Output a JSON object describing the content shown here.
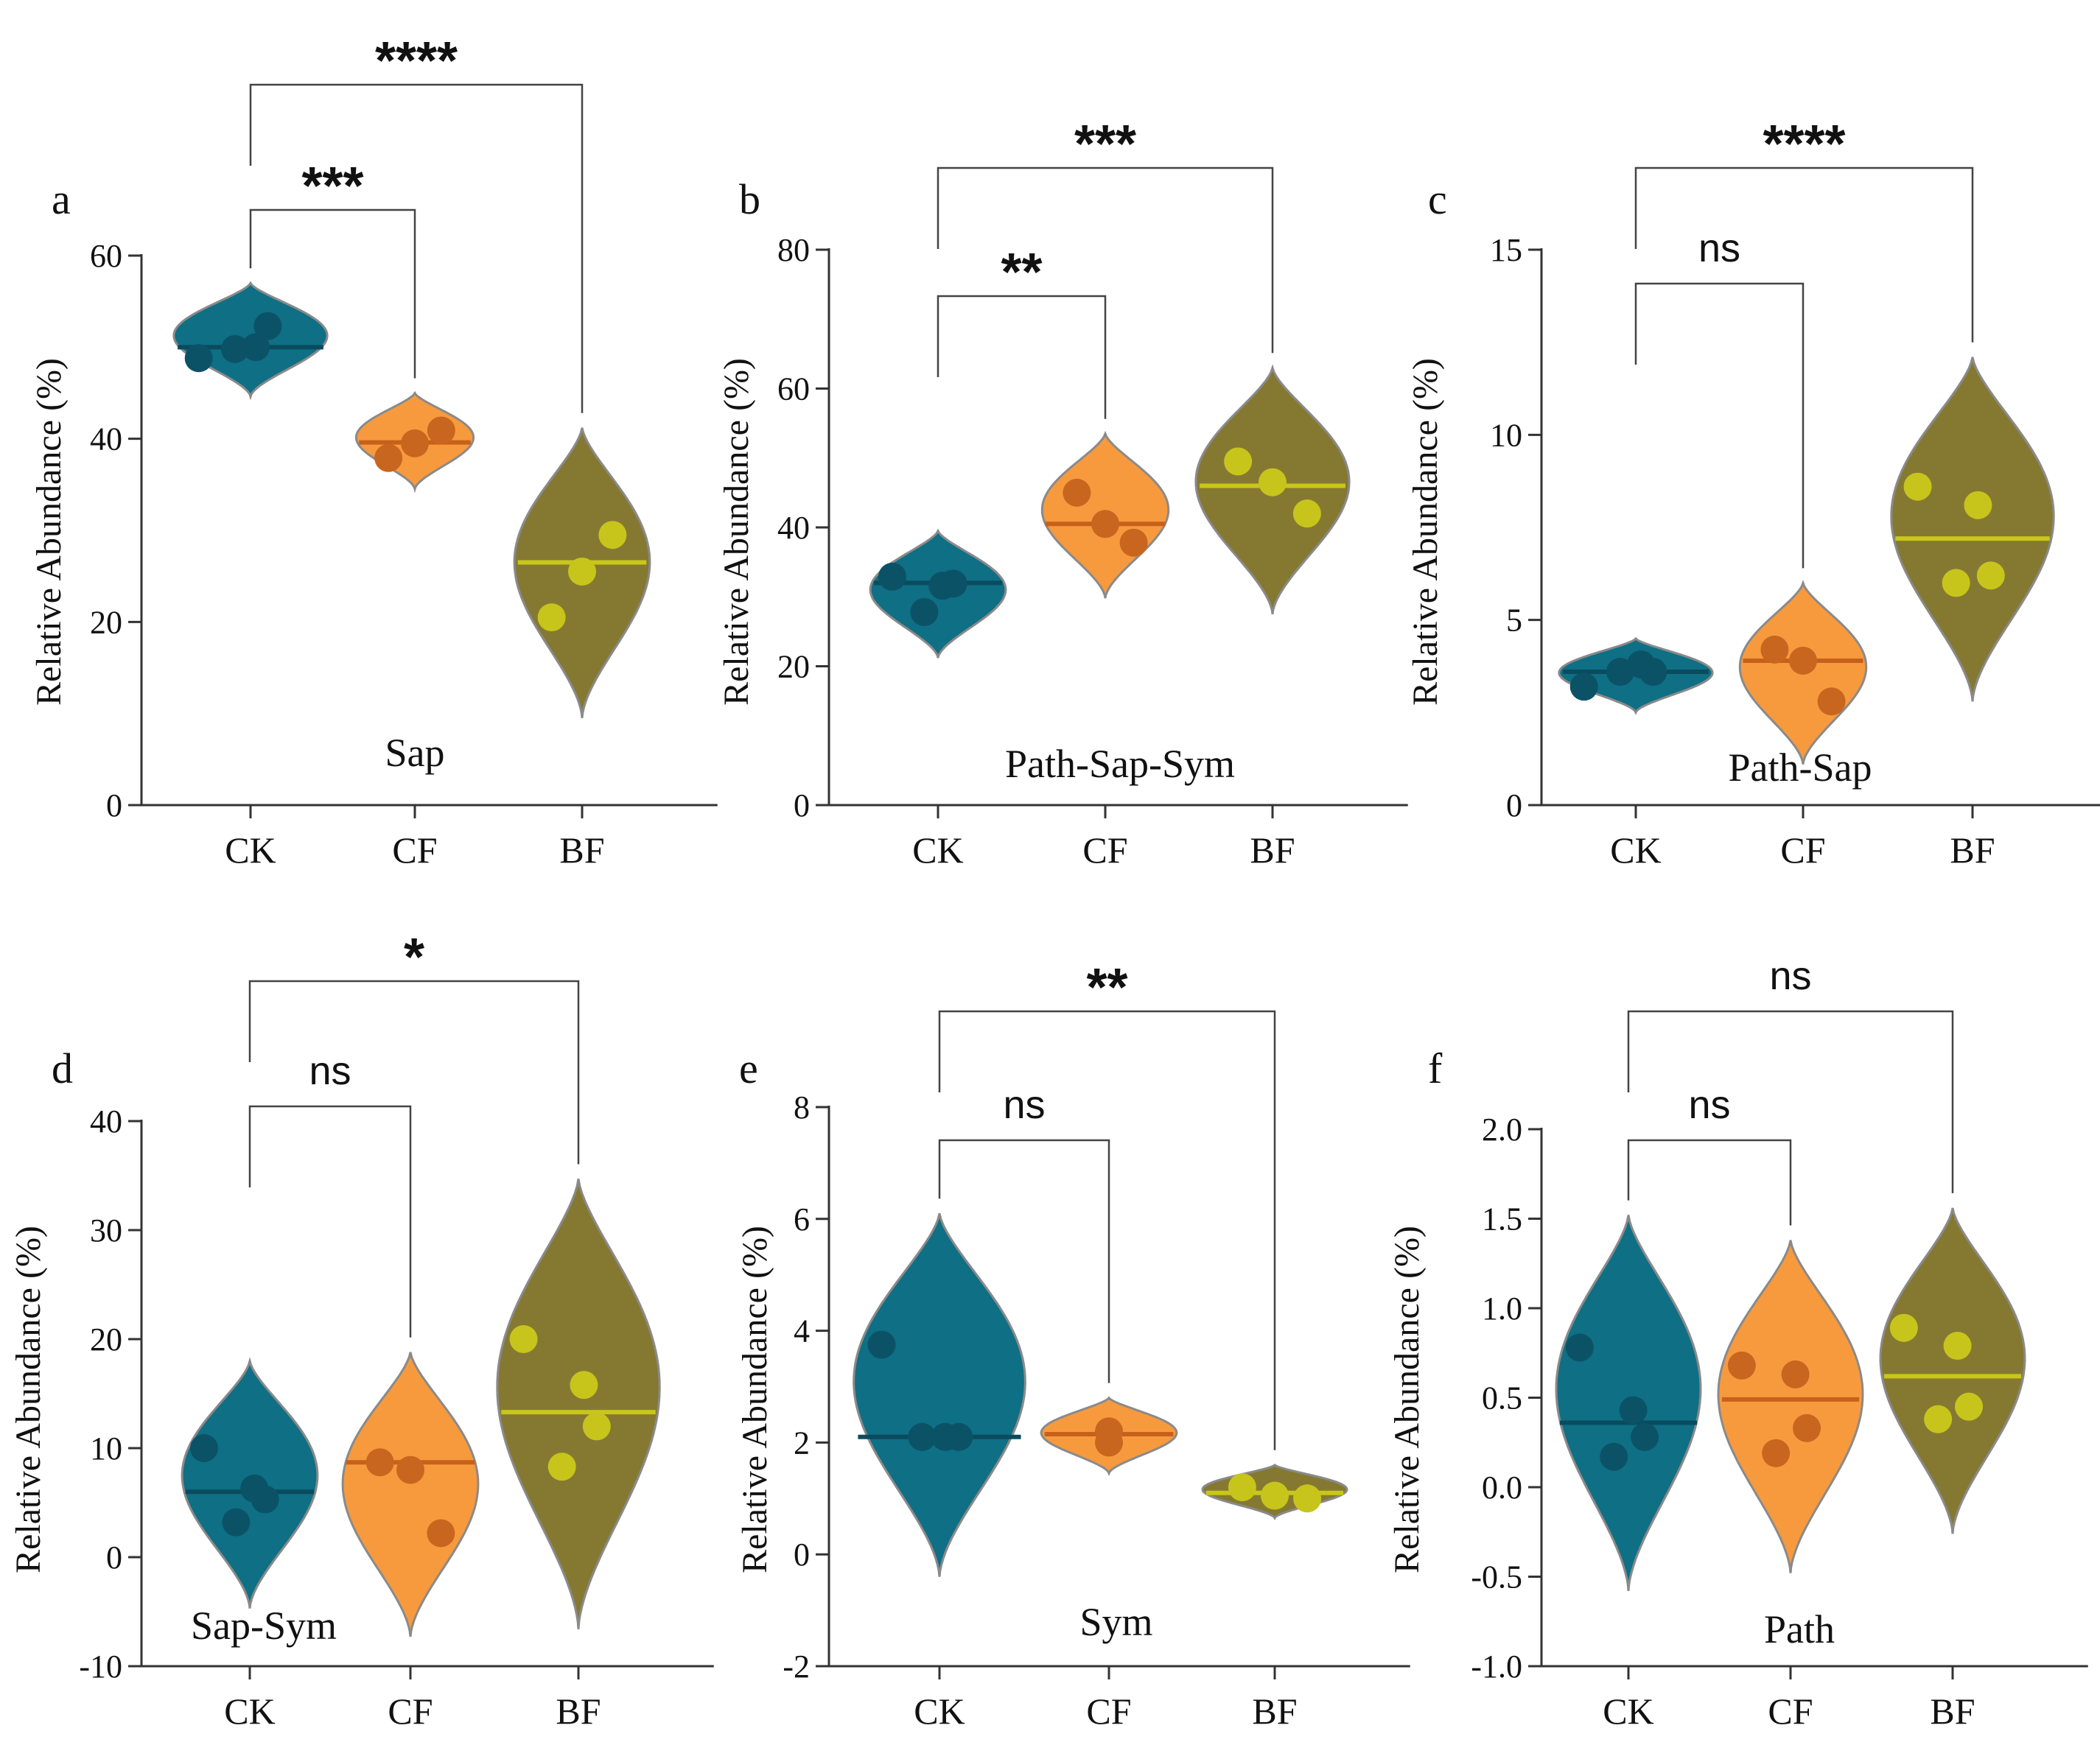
{
  "figure": {
    "y_axis_label": "Relative Abundance (%)",
    "group_colors": {
      "CK": "#0e6f85",
      "CF": "#f79a3e",
      "BF": "#857932"
    },
    "point_colors": {
      "CK": "#0c5266",
      "CF": "#c8661f",
      "BF": "#c7c51b"
    },
    "median_colors": {
      "CK": "#0a4b5d",
      "CF": "#c7601b",
      "BF": "#c9c718"
    }
  },
  "chart_data": [
    {
      "type": "violin",
      "panel": "a",
      "label": "Sap",
      "categories": [
        "CK",
        "CF",
        "BF"
      ],
      "ylim": [
        0,
        60
      ],
      "yticks": [
        0,
        20,
        40,
        60
      ],
      "tick_labels": [
        "0",
        "20",
        "40",
        "60"
      ],
      "series": [
        {
          "name": "CK",
          "median": 50.0,
          "points": [
            48.8,
            50.0,
            52.3,
            49.8
          ],
          "kde_range": [
            44.6,
            57.0
          ],
          "width_factor": 0.85
        },
        {
          "name": "CF",
          "median": 39.6,
          "points": [
            37.9,
            39.5,
            40.9
          ],
          "kde_range": [
            34.5,
            45.0
          ],
          "width_factor": 0.65
        },
        {
          "name": "BF",
          "median": 26.5,
          "points": [
            20.5,
            25.5,
            29.5
          ],
          "kde_range": [
            9.5,
            41.2
          ],
          "width_factor": 0.75
        }
      ],
      "comparisons": [
        {
          "from": "CK",
          "to": "CF",
          "label": "***"
        },
        {
          "from": "CK",
          "to": "BF",
          "label": "****"
        }
      ]
    },
    {
      "type": "violin",
      "panel": "b",
      "label": "Path-Sap-Sym",
      "categories": [
        "CK",
        "CF",
        "BF"
      ],
      "ylim": [
        0,
        80
      ],
      "yticks": [
        0,
        20,
        40,
        60,
        80
      ],
      "tick_labels": [
        "0",
        "20",
        "40",
        "60",
        "80"
      ],
      "series": [
        {
          "name": "CK",
          "median": 32.0,
          "points": [
            32.9,
            31.6,
            31.9,
            27.8
          ],
          "kde_range": [
            21.2,
            39.5
          ],
          "width_factor": 0.75
        },
        {
          "name": "CF",
          "median": 40.5,
          "points": [
            45.0,
            40.5,
            37.8
          ],
          "kde_range": [
            29.8,
            53.5
          ],
          "width_factor": 0.7
        },
        {
          "name": "BF",
          "median": 46.0,
          "points": [
            49.5,
            46.5,
            42.0
          ],
          "kde_range": [
            27.5,
            63.0
          ],
          "width_factor": 0.85
        }
      ],
      "comparisons": [
        {
          "from": "CK",
          "to": "CF",
          "label": "**"
        },
        {
          "from": "CK",
          "to": "BF",
          "label": "***"
        }
      ]
    },
    {
      "type": "violin",
      "panel": "c",
      "label": "Path-Sap",
      "categories": [
        "CK",
        "CF",
        "BF"
      ],
      "ylim": [
        0,
        15
      ],
      "yticks": [
        0,
        5,
        10,
        15
      ],
      "tick_labels": [
        "0",
        "5",
        "10",
        "15"
      ],
      "series": [
        {
          "name": "CK",
          "median": 3.6,
          "points": [
            3.2,
            3.8,
            3.6,
            3.6
          ],
          "kde_range": [
            2.5,
            4.5
          ],
          "width_factor": 0.85
        },
        {
          "name": "CF",
          "median": 3.9,
          "points": [
            4.2,
            3.9,
            2.8
          ],
          "kde_range": [
            1.1,
            6.0
          ],
          "width_factor": 0.7
        },
        {
          "name": "BF",
          "median": 7.2,
          "points": [
            8.6,
            8.1,
            6.2,
            6.0
          ],
          "kde_range": [
            2.8,
            12.1
          ],
          "width_factor": 0.9
        }
      ],
      "comparisons": [
        {
          "from": "CK",
          "to": "CF",
          "label": "ns"
        },
        {
          "from": "CK",
          "to": "BF",
          "label": "****"
        }
      ]
    },
    {
      "type": "violin",
      "panel": "d",
      "label": "Sap-Sym",
      "categories": [
        "CK",
        "CF",
        "BF"
      ],
      "ylim": [
        -10,
        40
      ],
      "yticks": [
        -10,
        0,
        10,
        20,
        30,
        40
      ],
      "tick_labels": [
        "-10",
        "0",
        "10",
        "20",
        "30",
        "40"
      ],
      "series": [
        {
          "name": "CK",
          "median": 6.0,
          "points": [
            10.0,
            6.3,
            5.3,
            3.2
          ],
          "kde_range": [
            -4.7,
            18.0
          ],
          "width_factor": 0.75
        },
        {
          "name": "CF",
          "median": 8.7,
          "points": [
            8.7,
            8.0,
            2.2
          ],
          "kde_range": [
            -7.3,
            18.8
          ],
          "width_factor": 0.75
        },
        {
          "name": "BF",
          "median": 13.3,
          "points": [
            20.0,
            15.8,
            12.0,
            8.3
          ],
          "kde_range": [
            -6.6,
            34.7
          ],
          "width_factor": 0.9
        }
      ],
      "comparisons": [
        {
          "from": "CK",
          "to": "CF",
          "label": "ns"
        },
        {
          "from": "CK",
          "to": "BF",
          "label": "*"
        }
      ]
    },
    {
      "type": "violin",
      "panel": "e",
      "label": "Sym",
      "categories": [
        "CK",
        "CF",
        "BF"
      ],
      "ylim": [
        -2,
        8
      ],
      "yticks": [
        -2,
        0,
        2,
        4,
        6,
        8
      ],
      "tick_labels": [
        "-2",
        "0",
        "2",
        "4",
        "6",
        "8"
      ],
      "series": [
        {
          "name": "CK",
          "median": 2.1,
          "points": [
            3.75,
            2.1,
            2.1,
            2.1
          ],
          "kde_range": [
            -0.4,
            6.1
          ],
          "width_factor": 0.95
        },
        {
          "name": "CF",
          "median": 2.15,
          "points": [
            2.2,
            2.0
          ],
          "kde_range": [
            1.45,
            2.8
          ],
          "width_factor": 0.75
        },
        {
          "name": "BF",
          "median": 1.1,
          "points": [
            1.2,
            1.05,
            1.0
          ],
          "kde_range": [
            0.65,
            1.6
          ],
          "width_factor": 0.8
        }
      ],
      "comparisons": [
        {
          "from": "CK",
          "to": "CF",
          "label": "ns"
        },
        {
          "from": "CK",
          "to": "BF",
          "label": "**"
        }
      ]
    },
    {
      "type": "violin",
      "panel": "f",
      "label": "Path",
      "categories": [
        "CK",
        "CF",
        "BF"
      ],
      "ylim": [
        -1.0,
        2.0
      ],
      "yticks": [
        -1.0,
        -0.5,
        0.0,
        0.5,
        1.0,
        1.5,
        2.0
      ],
      "tick_labels": [
        "-1.0",
        "-0.5",
        "0.0",
        "0.5",
        "1.0",
        "1.5",
        "2.0"
      ],
      "series": [
        {
          "name": "CK",
          "median": 0.36,
          "points": [
            0.78,
            0.43,
            0.28,
            0.17
          ],
          "kde_range": [
            -0.58,
            1.52
          ],
          "width_factor": 0.8
        },
        {
          "name": "CF",
          "median": 0.49,
          "points": [
            0.68,
            0.63,
            0.33,
            0.19
          ],
          "kde_range": [
            -0.48,
            1.38
          ],
          "width_factor": 0.8
        },
        {
          "name": "BF",
          "median": 0.62,
          "points": [
            0.89,
            0.79,
            0.45,
            0.38
          ],
          "kde_range": [
            -0.26,
            1.56
          ],
          "width_factor": 0.8
        }
      ],
      "comparisons": [
        {
          "from": "CK",
          "to": "CF",
          "label": "ns"
        },
        {
          "from": "CK",
          "to": "BF",
          "label": "ns"
        }
      ]
    }
  ]
}
